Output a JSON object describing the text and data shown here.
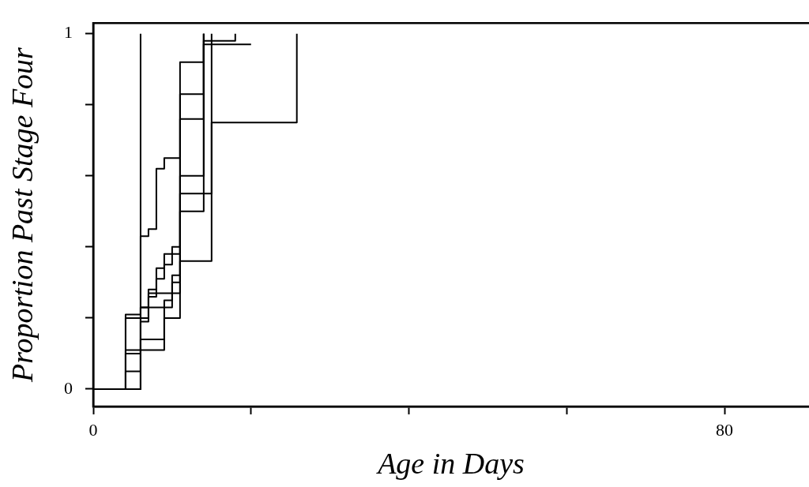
{
  "chart_data": {
    "type": "step",
    "xlabel": "Age in Days",
    "ylabel": "Proportion Past Stage Four",
    "xlim": [
      0,
      90.7
    ],
    "ylim": [
      -0.049,
      1.03
    ],
    "xticks": [
      0,
      {
        "value": 20,
        "label": null
      },
      {
        "value": 40,
        "label": null
      },
      {
        "value": 60,
        "label": null
      },
      80
    ],
    "yticks": [
      0,
      {
        "value": 0.2,
        "label": null
      },
      {
        "value": 0.4,
        "label": null
      },
      {
        "value": 0.6,
        "label": null
      },
      {
        "value": 0.8,
        "label": null
      },
      1
    ],
    "grid": false,
    "legend": false,
    "marker": "none",
    "line_style": "solid",
    "series": [
      {
        "color": "#000000",
        "x": [
          0,
          6,
          7,
          8,
          9,
          11,
          14
        ],
        "values": [
          0,
          0.43,
          0.45,
          0.62,
          0.65,
          0.92,
          1
        ]
      },
      {
        "color": "#000000",
        "x": [
          0,
          4.1,
          6,
          7,
          8,
          9,
          11,
          14,
          20
        ],
        "values": [
          0,
          0.21,
          0.23,
          0.28,
          0.34,
          0.38,
          0.83,
          0.97,
          0.97
        ]
      },
      {
        "color": "#000000",
        "x": [
          0,
          4.1,
          6,
          7,
          8,
          9,
          10,
          11,
          14,
          18
        ],
        "values": [
          0,
          0.1,
          0.19,
          0.26,
          0.31,
          0.35,
          0.4,
          0.76,
          0.98,
          1
        ]
      },
      {
        "color": "#000000",
        "x": [
          0,
          4.1,
          6,
          9,
          10,
          11,
          15,
          25.8
        ],
        "values": [
          0,
          0.05,
          0.11,
          0.25,
          0.27,
          0.36,
          0.75,
          1
        ]
      },
      {
        "color": "#000000",
        "x": [
          0,
          6,
          10,
          11,
          14
        ],
        "values": [
          0,
          0.23,
          0.3,
          0.5,
          1
        ]
      },
      {
        "color": "#000000",
        "x": [
          0,
          4.1,
          7,
          10,
          11,
          15
        ],
        "values": [
          0,
          0.2,
          0.27,
          0.32,
          0.55,
          1
        ]
      },
      {
        "color": "#000000",
        "x": [
          0,
          4.1,
          6,
          9,
          11,
          14
        ],
        "values": [
          0,
          0.11,
          0.14,
          0.2,
          0.6,
          1
        ]
      },
      {
        "color": "#000000",
        "x": [
          0,
          6
        ],
        "values": [
          0,
          1
        ]
      }
    ]
  }
}
